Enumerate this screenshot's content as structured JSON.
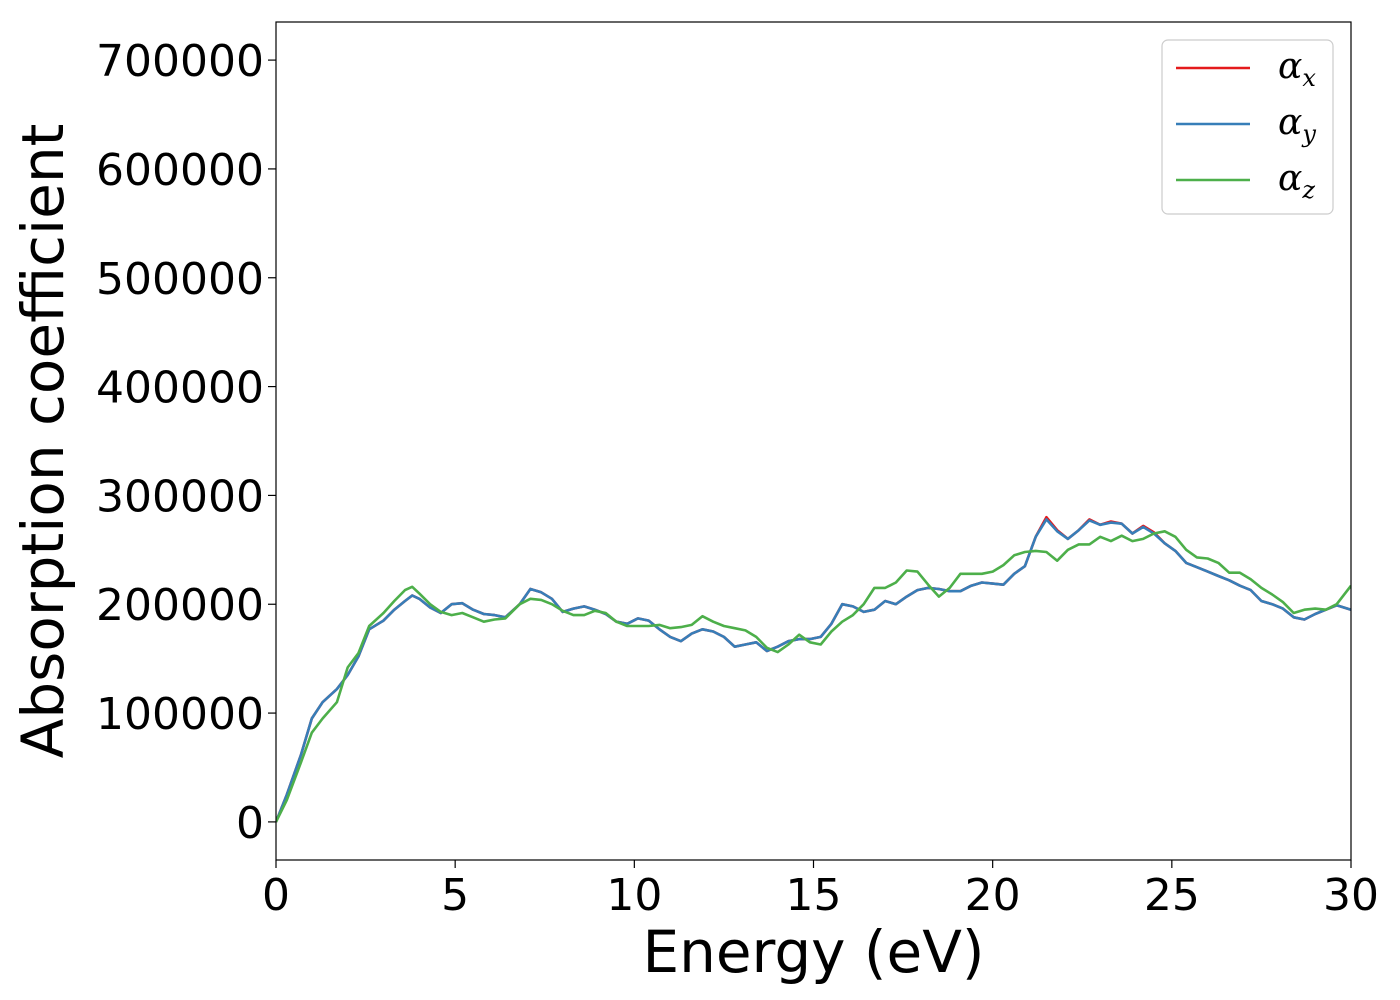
{
  "chart_data": {
    "type": "line",
    "title": "",
    "xlabel": "Energy (eV)",
    "ylabel": "Absorption coefficient",
    "xlim": [
      0,
      30
    ],
    "ylim": [
      -35000,
      735000
    ],
    "x_ticks": [
      0,
      5,
      10,
      15,
      20,
      25,
      30
    ],
    "x_tick_labels": [
      "0",
      "5",
      "10",
      "15",
      "20",
      "25",
      "30"
    ],
    "y_ticks": [
      0,
      100000,
      200000,
      300000,
      400000,
      500000,
      600000,
      700000
    ],
    "y_tick_labels": [
      "0",
      "100000",
      "200000",
      "300000",
      "400000",
      "500000",
      "600000",
      "700000"
    ],
    "grid": false,
    "legend_position": "top-right",
    "series": [
      {
        "name": "α",
        "subscript": "x",
        "color": "#e41a1c",
        "x": [
          0,
          0.3,
          0.7,
          1.0,
          1.3,
          1.7,
          2.0,
          2.3,
          2.6,
          3.0,
          3.3,
          3.6,
          3.8,
          4.0,
          4.3,
          4.6,
          4.9,
          5.2,
          5.5,
          5.8,
          6.1,
          6.4,
          6.8,
          7.1,
          7.4,
          7.7,
          8.0,
          8.3,
          8.6,
          8.9,
          9.2,
          9.5,
          9.8,
          10.1,
          10.4,
          10.7,
          11.0,
          11.3,
          11.6,
          11.9,
          12.2,
          12.5,
          12.8,
          13.1,
          13.4,
          13.7,
          14.0,
          14.3,
          14.6,
          14.9,
          15.2,
          15.5,
          15.8,
          16.1,
          16.4,
          16.7,
          17.0,
          17.3,
          17.6,
          17.9,
          18.2,
          18.5,
          18.8,
          19.1,
          19.4,
          19.7,
          20.0,
          20.3,
          20.6,
          20.9,
          21.2,
          21.5,
          21.8,
          22.1,
          22.4,
          22.7,
          23.0,
          23.3,
          23.6,
          23.9,
          24.2,
          24.5,
          24.8,
          25.1,
          25.4,
          25.7,
          26.0,
          26.3,
          26.6,
          26.9,
          27.2,
          27.5,
          27.8,
          28.1,
          28.4,
          28.7,
          29.0,
          29.3,
          29.6,
          30.0
        ],
        "y": [
          0,
          25000,
          62000,
          95000,
          110000,
          122000,
          135000,
          152000,
          177000,
          185000,
          195000,
          203000,
          208000,
          205000,
          197000,
          192000,
          200000,
          201000,
          195000,
          191000,
          190000,
          188000,
          200000,
          214000,
          211000,
          205000,
          193000,
          196000,
          198000,
          195000,
          191000,
          184000,
          182000,
          187000,
          185000,
          177000,
          170000,
          166000,
          173000,
          177000,
          175000,
          170000,
          161000,
          163000,
          165000,
          157000,
          161000,
          166000,
          168000,
          168000,
          170000,
          182000,
          200000,
          198000,
          193000,
          195000,
          203000,
          200000,
          207000,
          213000,
          215000,
          214000,
          212000,
          212000,
          217000,
          220000,
          219000,
          218000,
          228000,
          235000,
          262000,
          280000,
          268000,
          260000,
          268000,
          278000,
          273000,
          276000,
          274000,
          265000,
          272000,
          266000,
          256000,
          249000,
          238000,
          234000,
          230000,
          226000,
          222000,
          217000,
          213000,
          203000,
          200000,
          196000,
          188000,
          186000,
          191000,
          195000,
          199000,
          195000
        ]
      },
      {
        "name": "α",
        "subscript": "y",
        "color": "#377eb8",
        "x": [
          0,
          0.3,
          0.7,
          1.0,
          1.3,
          1.7,
          2.0,
          2.3,
          2.6,
          3.0,
          3.3,
          3.6,
          3.8,
          4.0,
          4.3,
          4.6,
          4.9,
          5.2,
          5.5,
          5.8,
          6.1,
          6.4,
          6.8,
          7.1,
          7.4,
          7.7,
          8.0,
          8.3,
          8.6,
          8.9,
          9.2,
          9.5,
          9.8,
          10.1,
          10.4,
          10.7,
          11.0,
          11.3,
          11.6,
          11.9,
          12.2,
          12.5,
          12.8,
          13.1,
          13.4,
          13.7,
          14.0,
          14.3,
          14.6,
          14.9,
          15.2,
          15.5,
          15.8,
          16.1,
          16.4,
          16.7,
          17.0,
          17.3,
          17.6,
          17.9,
          18.2,
          18.5,
          18.8,
          19.1,
          19.4,
          19.7,
          20.0,
          20.3,
          20.6,
          20.9,
          21.2,
          21.5,
          21.8,
          22.1,
          22.4,
          22.7,
          23.0,
          23.3,
          23.6,
          23.9,
          24.2,
          24.5,
          24.8,
          25.1,
          25.4,
          25.7,
          26.0,
          26.3,
          26.6,
          26.9,
          27.2,
          27.5,
          27.8,
          28.1,
          28.4,
          28.7,
          29.0,
          29.3,
          29.6,
          30.0
        ],
        "y": [
          0,
          25000,
          62000,
          95000,
          110000,
          122000,
          135000,
          152000,
          177000,
          185000,
          195000,
          203000,
          208000,
          205000,
          197000,
          192000,
          200000,
          201000,
          195000,
          191000,
          190000,
          188000,
          200000,
          214000,
          211000,
          205000,
          193000,
          196000,
          198000,
          195000,
          191000,
          184000,
          182000,
          187000,
          185000,
          177000,
          170000,
          166000,
          173000,
          177000,
          175000,
          170000,
          161000,
          163000,
          165000,
          157000,
          161000,
          166000,
          168000,
          168000,
          170000,
          182000,
          200000,
          198000,
          193000,
          195000,
          203000,
          200000,
          207000,
          213000,
          215000,
          214000,
          212000,
          212000,
          217000,
          220000,
          219000,
          218000,
          228000,
          235000,
          262000,
          278000,
          267000,
          260000,
          268000,
          277000,
          273000,
          275000,
          274000,
          265000,
          271000,
          265000,
          256000,
          249000,
          238000,
          234000,
          230000,
          226000,
          222000,
          217000,
          213000,
          203000,
          200000,
          196000,
          188000,
          186000,
          191000,
          195000,
          199000,
          195000
        ]
      },
      {
        "name": "α",
        "subscript": "z",
        "color": "#4daf4a",
        "x": [
          0,
          0.3,
          0.7,
          1.0,
          1.3,
          1.7,
          2.0,
          2.3,
          2.6,
          3.0,
          3.3,
          3.6,
          3.8,
          4.0,
          4.3,
          4.6,
          4.9,
          5.2,
          5.5,
          5.8,
          6.1,
          6.4,
          6.8,
          7.1,
          7.4,
          7.7,
          8.0,
          8.3,
          8.6,
          8.9,
          9.2,
          9.5,
          9.8,
          10.1,
          10.4,
          10.7,
          11.0,
          11.3,
          11.6,
          11.9,
          12.2,
          12.5,
          12.8,
          13.1,
          13.4,
          13.7,
          14.0,
          14.3,
          14.6,
          14.9,
          15.2,
          15.5,
          15.8,
          16.1,
          16.4,
          16.7,
          17.0,
          17.3,
          17.6,
          17.9,
          18.2,
          18.5,
          18.8,
          19.1,
          19.4,
          19.7,
          20.0,
          20.3,
          20.6,
          20.9,
          21.2,
          21.5,
          21.8,
          22.1,
          22.4,
          22.7,
          23.0,
          23.3,
          23.6,
          23.9,
          24.2,
          24.5,
          24.8,
          25.1,
          25.4,
          25.7,
          26.0,
          26.3,
          26.6,
          26.9,
          27.2,
          27.5,
          27.8,
          28.1,
          28.4,
          28.7,
          29.0,
          29.3,
          29.6,
          30.0
        ],
        "y": [
          0,
          20000,
          55000,
          82000,
          95000,
          110000,
          142000,
          155000,
          180000,
          192000,
          203000,
          213000,
          216000,
          210000,
          200000,
          193000,
          190000,
          192000,
          188000,
          184000,
          186000,
          187000,
          200000,
          205000,
          204000,
          200000,
          194000,
          190000,
          190000,
          194000,
          192000,
          184000,
          180000,
          180000,
          180000,
          181000,
          178000,
          179000,
          181000,
          189000,
          184000,
          180000,
          178000,
          176000,
          170000,
          160000,
          156000,
          163000,
          172000,
          165000,
          163000,
          175000,
          184000,
          190000,
          200000,
          215000,
          215000,
          220000,
          231000,
          230000,
          218000,
          207000,
          215000,
          228000,
          228000,
          228000,
          230000,
          236000,
          245000,
          248000,
          249000,
          248000,
          240000,
          250000,
          255000,
          255000,
          262000,
          258000,
          263000,
          258000,
          260000,
          265000,
          267000,
          262000,
          250000,
          243000,
          242000,
          238000,
          229000,
          229000,
          223000,
          215000,
          209000,
          202000,
          192000,
          195000,
          196000,
          195000,
          200000,
          217000
        ]
      }
    ]
  }
}
